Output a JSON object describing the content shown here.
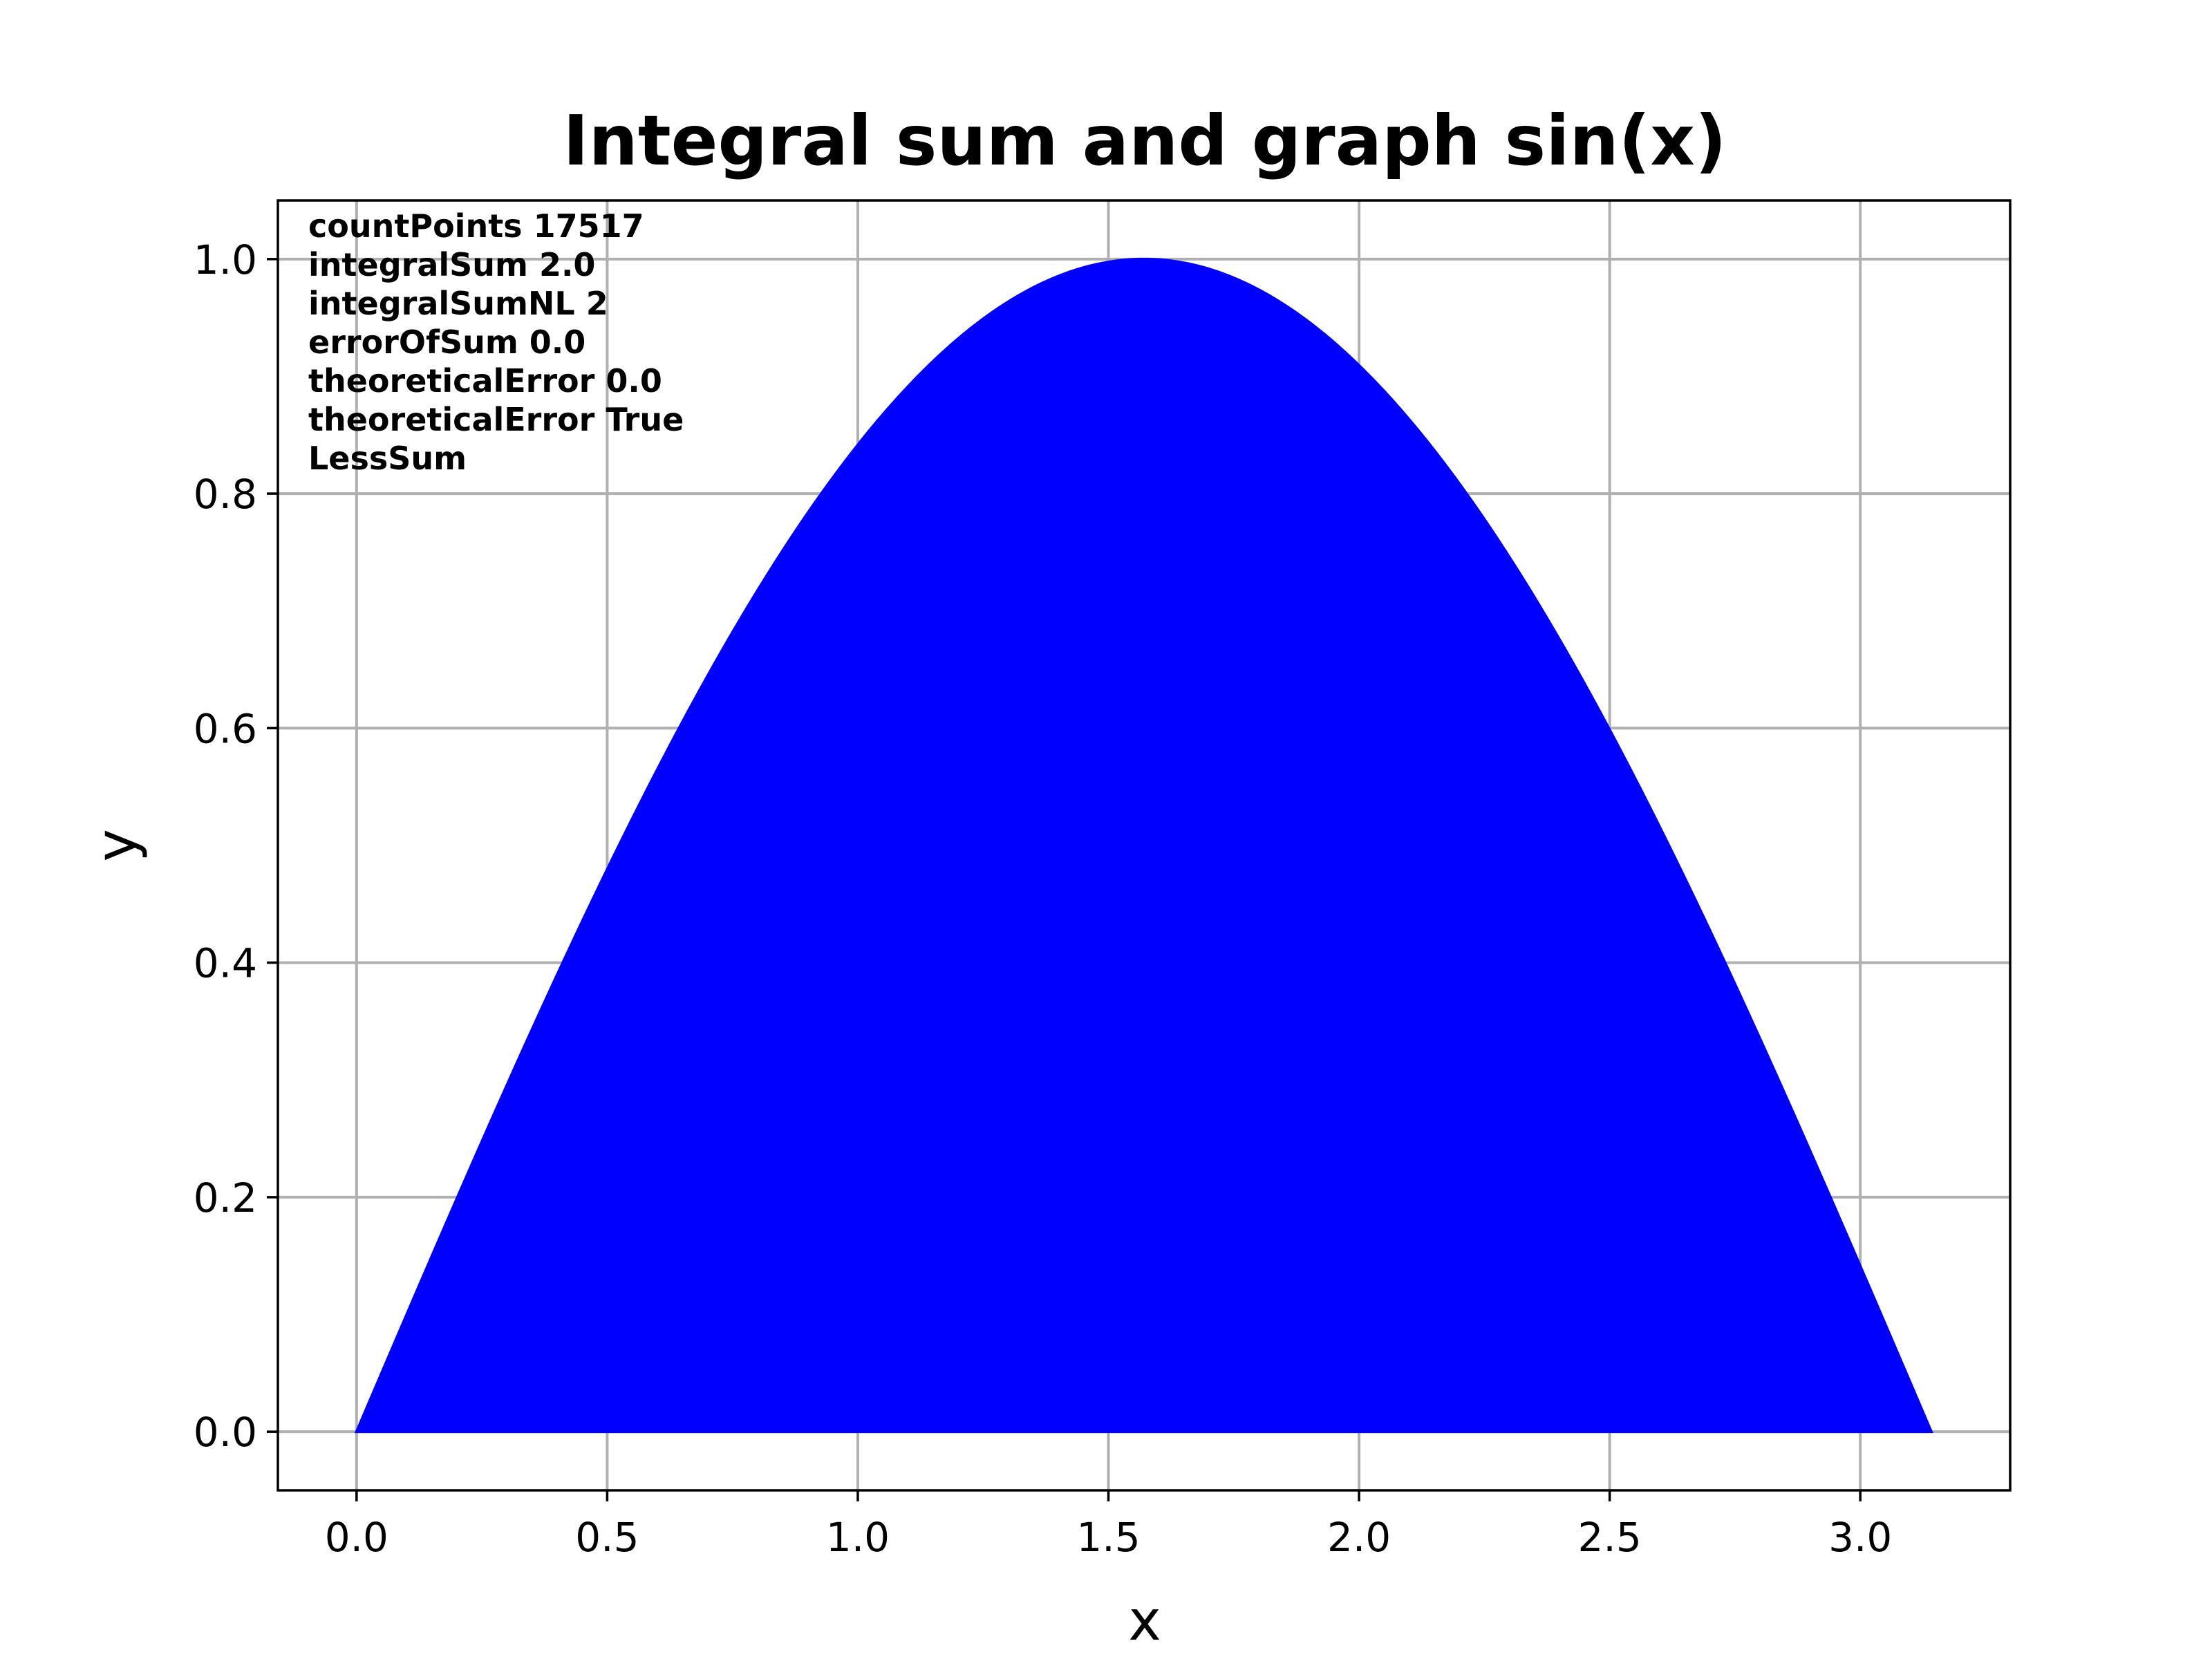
{
  "chart_data": {
    "type": "area",
    "title": "Integral sum and graph sin(x)",
    "xlabel": "x",
    "ylabel": "y",
    "xlim": [
      -0.157,
      3.299
    ],
    "ylim": [
      -0.05,
      1.05
    ],
    "xticks": [
      0.0,
      0.5,
      1.0,
      1.5,
      2.0,
      2.5,
      3.0
    ],
    "xtick_labels": [
      "0.0",
      "0.5",
      "1.0",
      "1.5",
      "2.0",
      "2.5",
      "3.0"
    ],
    "yticks": [
      0.0,
      0.2,
      0.4,
      0.6,
      0.8,
      1.0
    ],
    "ytick_labels": [
      "0.0",
      "0.2",
      "0.4",
      "0.6",
      "0.8",
      "1.0"
    ],
    "grid": true,
    "series": [
      {
        "function": "sin(x)",
        "x_range": [
          0,
          3.14159
        ],
        "color": "#0000ff",
        "filled": true
      }
    ],
    "annotations": [
      "countPoints 17517",
      "integralSum 2.0",
      "integralSumNL 2",
      "errorOfSum 0.0",
      "theoreticalError 0.0",
      "theoreticalError True",
      "LessSum"
    ]
  }
}
